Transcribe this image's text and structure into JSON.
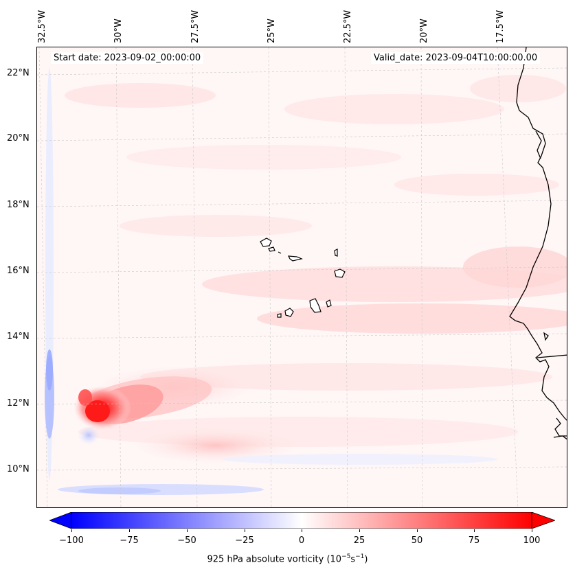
{
  "header": {
    "start_date": "Start date: 2023-09-02_00:00:00",
    "valid_date": "Valid_date: 2023-09-04T10:00:00.00"
  },
  "map": {
    "longitude_labels": [
      "32.5°W",
      "30°W",
      "27.5°W",
      "25°W",
      "22.5°W",
      "20°W",
      "17.5°W"
    ],
    "latitude_labels": [
      "22°N",
      "20°N",
      "18°N",
      "16°N",
      "14°N",
      "12°N",
      "10°N"
    ],
    "field": "925 hPa absolute vorticity",
    "features": [
      "cape-verde-islands",
      "west-african-coastline",
      "vorticity-maximum"
    ]
  },
  "colorbar": {
    "ticks": [
      "−100",
      "−75",
      "−50",
      "−25",
      "0",
      "25",
      "50",
      "75",
      "100"
    ],
    "label_main": "925 hPa absolute vorticity (10",
    "label_exp1": "−5",
    "label_mid": "s",
    "label_exp2": "−1",
    "label_end": ")",
    "min": -100,
    "max": 100,
    "colors": {
      "negative": "#0000ff",
      "zero": "#ffffff",
      "positive": "#ff0000"
    }
  }
}
